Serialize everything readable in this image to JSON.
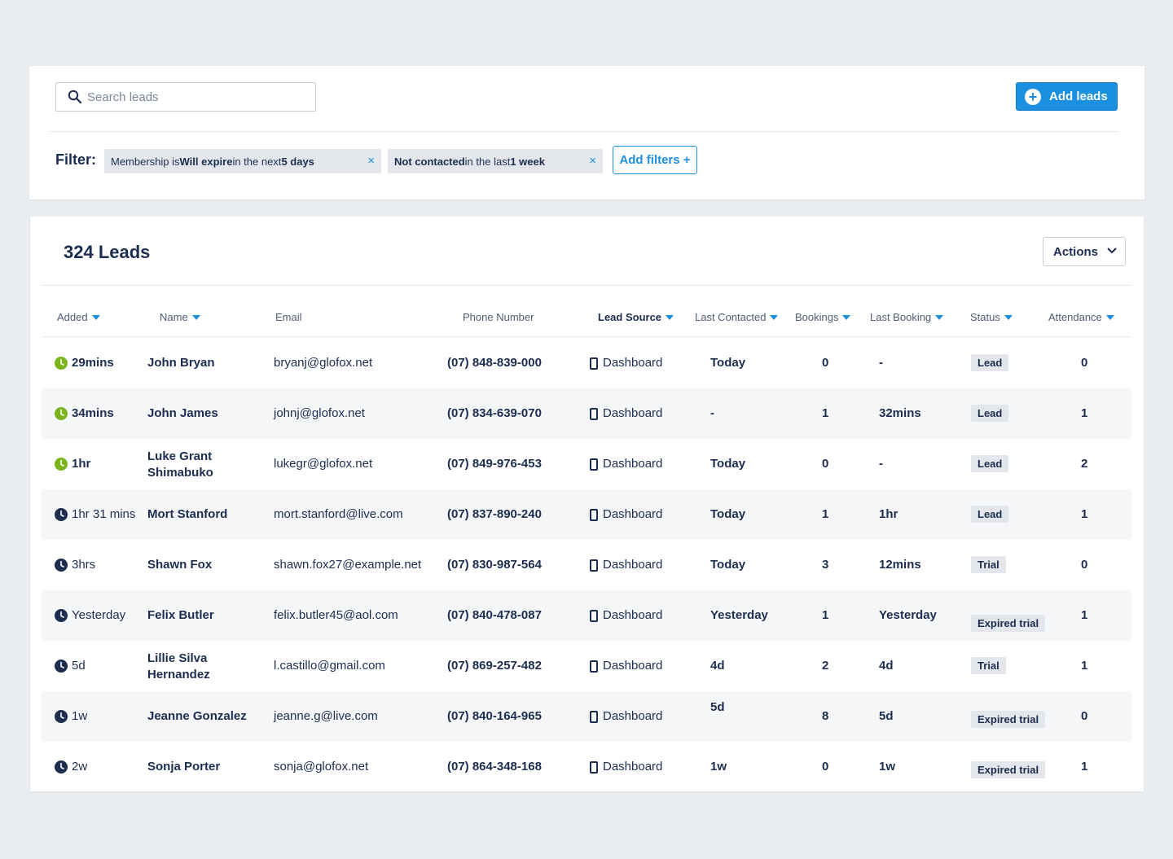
{
  "search": {
    "placeholder": "Search leads",
    "icon": "search-icon"
  },
  "add_leads": {
    "label": "Add leads"
  },
  "filter": {
    "label": "Filter:",
    "chips": [
      {
        "pre": "Membership is ",
        "b1": "Will expire",
        "mid": " in the next ",
        "b2": "5 days"
      },
      {
        "pre": "",
        "b1": "Not contacted",
        "mid": " in the last ",
        "b2": "1 week"
      }
    ],
    "add_label": "Add filters +"
  },
  "leads": {
    "title": "324 Leads",
    "actions_label": "Actions",
    "columns": [
      "Added",
      "Name",
      "Email",
      "Phone Number",
      "Lead Source",
      "Last Contacted",
      "Bookings",
      "Last Booking",
      "Status",
      "Attendance"
    ],
    "rows": [
      {
        "added": "29mins",
        "recent": true,
        "name": "John Bryan",
        "email": "bryanj@glofox.net",
        "phone": "(07) 848-839-000",
        "source": "Dashboard",
        "last_contacted": "Today",
        "bookings": "0",
        "last_booking": "-",
        "status": "Lead",
        "attendance": "0"
      },
      {
        "added": "34mins",
        "recent": true,
        "name": "John James",
        "email": "johnj@glofox.net",
        "phone": "(07) 834-639-070",
        "source": "Dashboard",
        "last_contacted": "-",
        "bookings": "1",
        "last_booking": "32mins",
        "status": "Lead",
        "attendance": "1"
      },
      {
        "added": "1hr",
        "recent": true,
        "name": "Luke Grant Shimabuko",
        "email": "lukegr@glofox.net",
        "phone": "(07) 849-976-453",
        "source": "Dashboard",
        "last_contacted": "Today",
        "bookings": "0",
        "last_booking": "-",
        "status": "Lead",
        "attendance": "2"
      },
      {
        "added": "1hr 31 mins",
        "recent": false,
        "name": "Mort Stanford",
        "email": "mort.stanford@live.com",
        "phone": "(07) 837-890-240",
        "source": "Dashboard",
        "last_contacted": "Today",
        "bookings": "1",
        "last_booking": "1hr",
        "status": "Lead",
        "attendance": "1"
      },
      {
        "added": "3hrs",
        "recent": false,
        "name": "Shawn Fox",
        "email": "shawn.fox27@example.net",
        "phone": "(07) 830-987-564",
        "source": "Dashboard",
        "last_contacted": "Today",
        "bookings": "3",
        "last_booking": "12mins",
        "status": "Trial",
        "attendance": "0"
      },
      {
        "added": "Yesterday",
        "recent": false,
        "name": "Felix Butler",
        "email": "felix.butler45@aol.com",
        "phone": "(07) 840-478-087",
        "source": "Dashboard",
        "last_contacted": "Yesterday",
        "bookings": "1",
        "last_booking": "Yesterday",
        "status": "Expired trial",
        "attendance": "1"
      },
      {
        "added": "5d",
        "recent": false,
        "name": "Lillie Silva Hernandez",
        "email": "l.castillo@gmail.com",
        "phone": "(07) 869-257-482",
        "source": "Dashboard",
        "last_contacted": "4d",
        "bookings": "2",
        "last_booking": "4d",
        "status": "Trial",
        "attendance": "1"
      },
      {
        "added": "1w",
        "recent": false,
        "name": "Jeanne Gonzalez",
        "email": "jeanne.g@live.com",
        "phone": "(07) 840-164-965",
        "source": "Dashboard",
        "last_contacted": "5d",
        "bookings": "8",
        "last_booking": "5d",
        "status": "Expired trial",
        "attendance": "0"
      },
      {
        "added": "2w",
        "recent": false,
        "name": "Sonja Porter",
        "email": "sonja@glofox.net",
        "phone": "(07) 864-348-168",
        "source": "Dashboard",
        "last_contacted": "1w",
        "bookings": "0",
        "last_booking": "1w",
        "status": "Expired trial",
        "attendance": "1"
      }
    ]
  },
  "colors": {
    "accent": "#1b8fe0",
    "recent": "#7ab51d",
    "text": "#1c2d4f"
  }
}
